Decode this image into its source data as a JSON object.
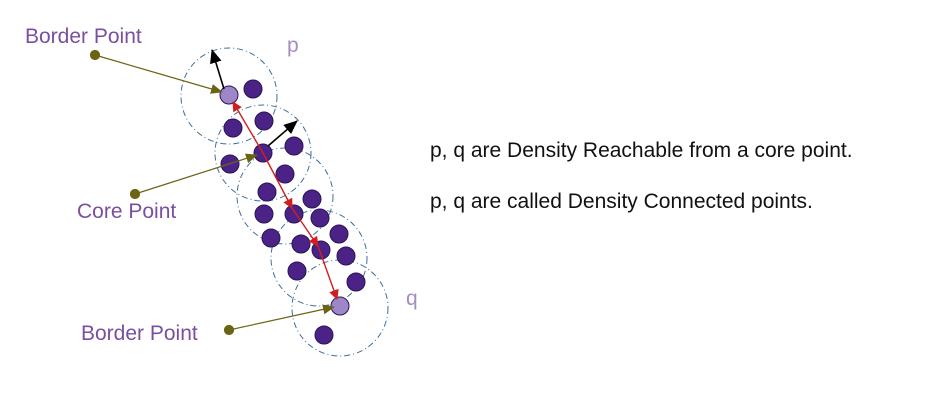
{
  "labels": {
    "border_top": "Border Point",
    "core": "Core Point",
    "border_bottom": "Border Point",
    "p": "p",
    "q": "q"
  },
  "statements": {
    "line1": "p, q are Density Reachable from a core point.",
    "line2": "p, q are called Density Connected points."
  },
  "colors": {
    "core_point": "#4b2387",
    "border_point": "#9d87c8",
    "reach_arrow": "#d21e1e",
    "pointer_line": "#6b6414",
    "eps_circle": "#3f6f9a",
    "label_text": "#7a4fa0"
  }
}
